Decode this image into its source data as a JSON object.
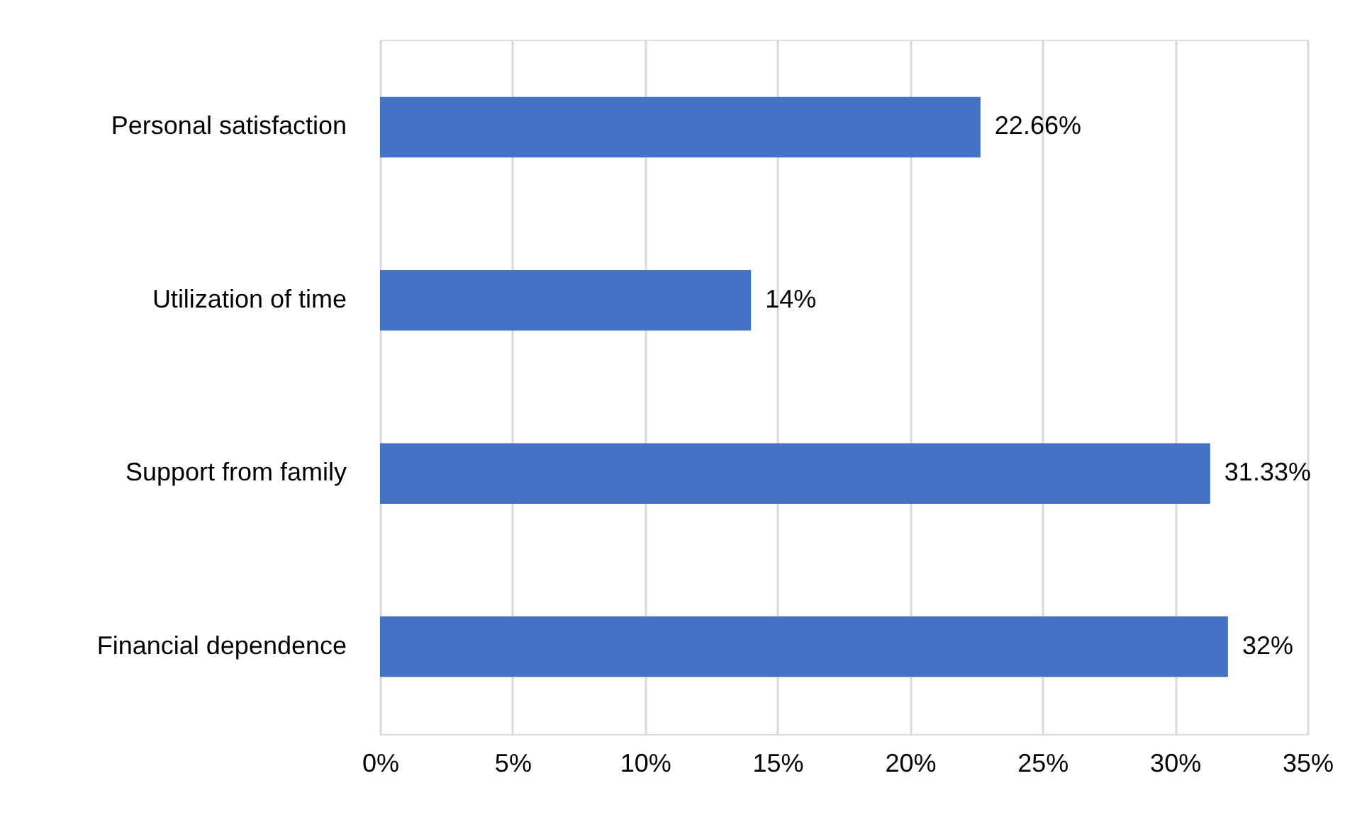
{
  "chart_data": {
    "type": "bar",
    "orientation": "horizontal",
    "categories": [
      "Personal satisfaction",
      "Utilization of time",
      "Support from family",
      "Financial dependence"
    ],
    "series": [
      {
        "color": "#4472c4",
        "values": [
          22.66,
          14,
          31.33,
          32
        ]
      }
    ],
    "value_labels": [
      "22.66%",
      "14%",
      "31.33%",
      "32%"
    ],
    "xlim": [
      0,
      35
    ],
    "xticks": [
      {
        "value": 0,
        "label": "0%"
      },
      {
        "value": 5,
        "label": "5%"
      },
      {
        "value": 10,
        "label": "10%"
      },
      {
        "value": 15,
        "label": "15%"
      },
      {
        "value": 20,
        "label": "20%"
      },
      {
        "value": 25,
        "label": "25%"
      },
      {
        "value": 30,
        "label": "30%"
      },
      {
        "value": 35,
        "label": "35%"
      }
    ],
    "grid": "x"
  }
}
